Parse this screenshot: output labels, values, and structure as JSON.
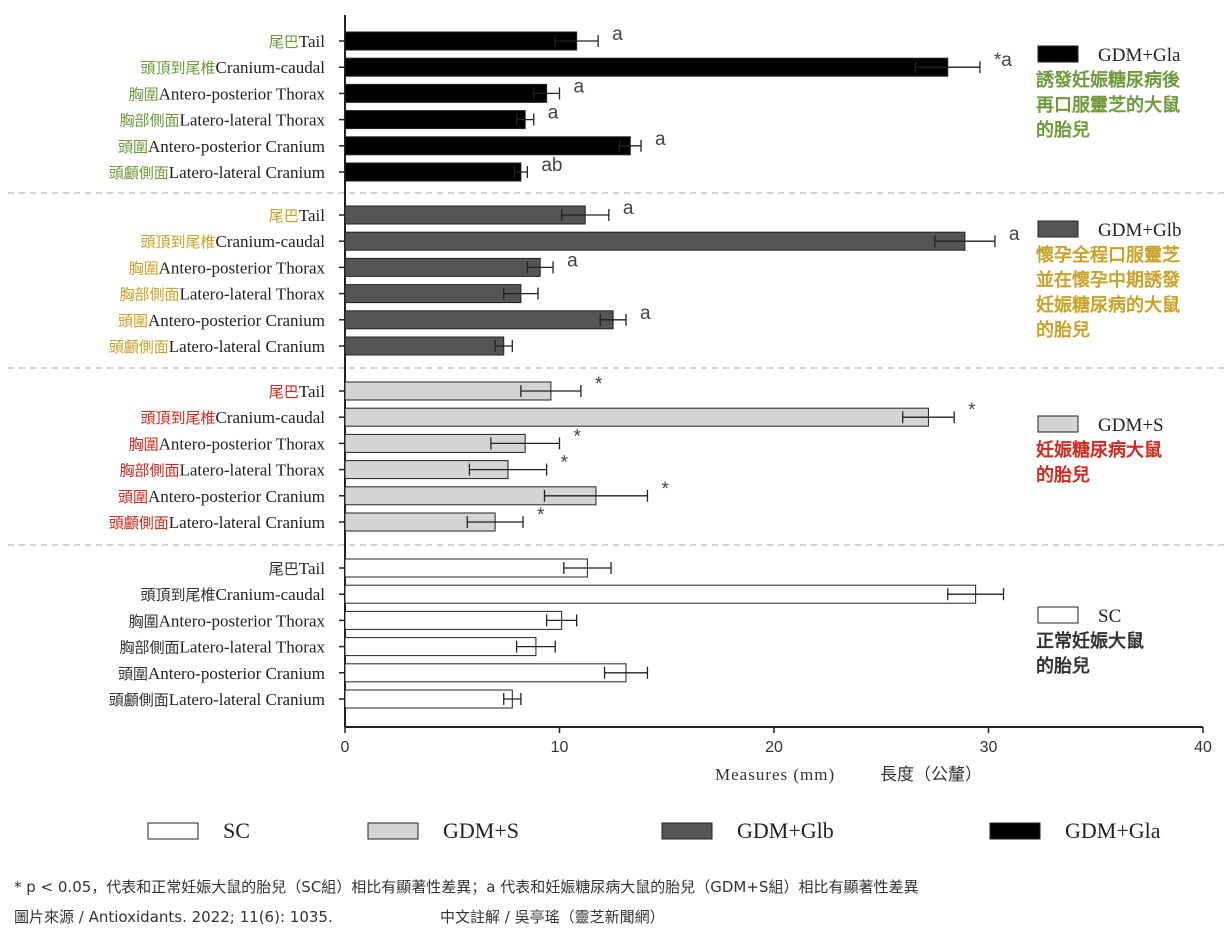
{
  "chart_data": {
    "type": "bar",
    "orientation": "horizontal",
    "xlabel": "Measures (mm)",
    "xlabel_zh": "長度（公釐）",
    "xlim": [
      0,
      40
    ],
    "xticks": [
      "0",
      "10",
      "20",
      "30",
      "40"
    ],
    "categories": [
      {
        "zh": "尾巴",
        "en": "Tail"
      },
      {
        "zh": "頭頂到尾椎",
        "en": "Cranium-caudal"
      },
      {
        "zh": "胸圍",
        "en": "Antero-posterior Thorax"
      },
      {
        "zh": "胸部側面",
        "en": "Latero-lateral Thorax"
      },
      {
        "zh": "頭圍",
        "en": "Antero-posterior Cranium"
      },
      {
        "zh": "頭顱側面",
        "en": "Latero-lateral Cranium"
      }
    ],
    "groups": [
      {
        "name": "GDM+Gla",
        "note": "誘發妊娠糖尿病後再口服靈芝的大鼠的胎兒",
        "note_lines": [
          "誘發妊娠糖尿病後",
          "再口服靈芝的大鼠",
          "的胎兒"
        ],
        "fill": "#000000",
        "label_color": "#6e9a3c",
        "note_color": "#6e9a3c",
        "values": [
          10.8,
          28.1,
          9.4,
          8.4,
          13.3,
          8.2
        ],
        "errors": [
          1.0,
          1.5,
          0.6,
          0.4,
          0.5,
          0.3
        ],
        "sig": [
          "a",
          "*a",
          "a",
          "a",
          "a",
          "ab"
        ]
      },
      {
        "name": "GDM+Glb",
        "note": "懷孕全程口服靈芝並在懷孕中期誘發妊娠糖尿病的大鼠的胎兒",
        "note_lines": [
          "懷孕全程口服靈芝",
          "並在懷孕中期誘發",
          "妊娠糖尿病的大鼠",
          "的胎兒"
        ],
        "fill": "#555555",
        "label_color": "#c9a227",
        "note_color": "#c9a227",
        "values": [
          11.2,
          28.9,
          9.1,
          8.2,
          12.5,
          7.4
        ],
        "errors": [
          1.1,
          1.4,
          0.6,
          0.8,
          0.6,
          0.4
        ],
        "sig": [
          "a",
          "a",
          "a",
          "",
          "a",
          ""
        ]
      },
      {
        "name": "GDM+S",
        "note": "妊娠糖尿病大鼠的胎兒",
        "note_lines": [
          "妊娠糖尿病大鼠",
          "的胎兒"
        ],
        "fill": "#d4d4d4",
        "label_color": "#d02a1e",
        "note_color": "#d02a1e",
        "values": [
          9.6,
          27.2,
          8.4,
          7.6,
          11.7,
          7.0
        ],
        "errors": [
          1.4,
          1.2,
          1.6,
          1.8,
          2.4,
          1.3
        ],
        "sig": [
          "*",
          "*",
          "*",
          "*",
          "*",
          "*"
        ]
      },
      {
        "name": "SC",
        "note": "正常妊娠大鼠的胎兒",
        "note_lines": [
          "正常妊娠大鼠",
          "的胎兒"
        ],
        "fill": "#ffffff",
        "label_color": "#333333",
        "note_color": "#333333",
        "values": [
          11.3,
          29.4,
          10.1,
          8.9,
          13.1,
          7.8
        ],
        "errors": [
          1.1,
          1.3,
          0.7,
          0.9,
          1.0,
          0.4
        ],
        "sig": [
          "",
          "",
          "",
          "",
          "",
          ""
        ]
      }
    ],
    "bottom_legend": [
      "SC",
      "GDM+S",
      "GDM+Glb",
      "GDM+Gla"
    ]
  },
  "footnote": {
    "line1": "* p < 0.05，代表和正常妊娠大鼠的胎兒（SC組）相比有顯著性差異；a 代表和妊娠糖尿病大鼠的胎兒（GDM+S組）相比有顯著性差異",
    "source": "圖片來源 / Antioxidants. 2022; 11(6): 1035.",
    "credit": "中文註解 / 吳亭瑤（靈芝新聞網）"
  }
}
